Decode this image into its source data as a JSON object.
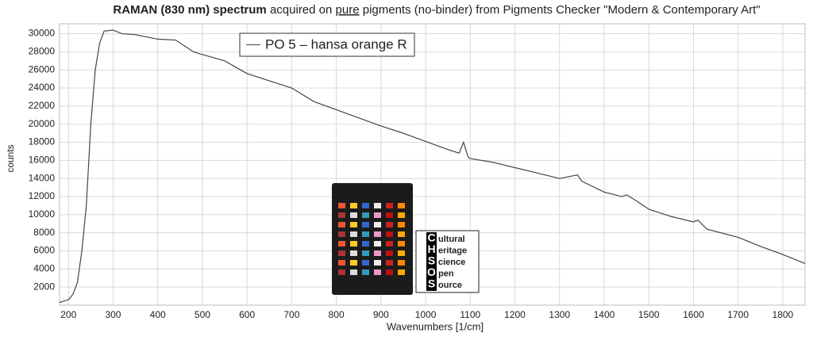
{
  "chart_data": {
    "type": "line",
    "title": "RAMAN (830 nm) spectrum",
    "subtitle_parts": [
      "acquired on",
      "pure",
      "pigments (no-binder) from Pigments Checker \"Modern & Contemporary Art\""
    ],
    "x_label": "Wavenumbers [1/cm]",
    "y_label": "counts",
    "x": [
      180,
      200,
      210,
      220,
      230,
      240,
      250,
      260,
      270,
      280,
      300,
      320,
      350,
      400,
      440,
      480,
      500,
      550,
      600,
      650,
      700,
      750,
      800,
      850,
      900,
      950,
      1000,
      1050,
      1075,
      1085,
      1095,
      1100,
      1150,
      1200,
      1250,
      1300,
      1320,
      1340,
      1350,
      1400,
      1440,
      1450,
      1470,
      1500,
      1550,
      1600,
      1610,
      1630,
      1700,
      1750,
      1800,
      1850
    ],
    "series": [
      {
        "name": "PO 5 – hansa orange R",
        "color": "#444444",
        "values": [
          300,
          600,
          1200,
          2500,
          6000,
          11000,
          20000,
          26000,
          29000,
          30300,
          30400,
          30000,
          29900,
          29400,
          29300,
          28000,
          27700,
          27000,
          25600,
          24800,
          24000,
          22500,
          21600,
          20700,
          19800,
          19000,
          18100,
          17200,
          16800,
          18000,
          16400,
          16200,
          15800,
          15200,
          14600,
          14000,
          14200,
          14400,
          13700,
          12500,
          12000,
          12200,
          11600,
          10600,
          9800,
          9200,
          9400,
          8400,
          7500,
          6500,
          5600,
          4600
        ]
      }
    ],
    "xlim": [
      180,
      1850
    ],
    "ylim": [
      0,
      31100
    ],
    "xticks": [
      200,
      300,
      400,
      500,
      600,
      700,
      800,
      900,
      1000,
      1100,
      1200,
      1300,
      1400,
      1500,
      1600,
      1700,
      1800
    ],
    "yticks": [
      2000,
      4000,
      6000,
      8000,
      10000,
      12000,
      14000,
      16000,
      18000,
      20000,
      22000,
      24000,
      26000,
      28000,
      30000
    ],
    "grid": true,
    "legend": "upper center"
  },
  "logo": {
    "letters": [
      "C",
      "H",
      "S",
      "O",
      "S"
    ],
    "words": [
      "ultural",
      "eritage",
      "cience",
      "pen",
      "ource"
    ]
  }
}
